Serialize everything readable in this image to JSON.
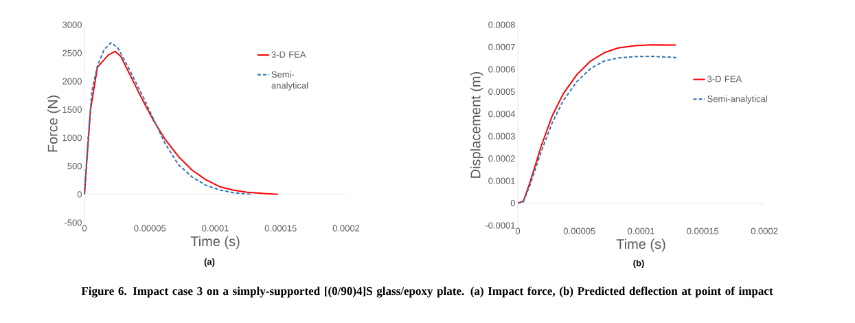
{
  "chart_data": [
    {
      "type": "line",
      "xlabel": "Time (s)",
      "ylabel": "Force (N)",
      "legend": "top right",
      "xlim": [
        0,
        0.0002
      ],
      "ylim": [
        -500,
        3000
      ],
      "xticks": [
        {
          "value": 0,
          "label": "0"
        },
        {
          "value": 5e-05,
          "label": "0.00005"
        },
        {
          "value": 0.0001,
          "label": "0.0001"
        },
        {
          "value": 0.00015,
          "label": "0.00015"
        },
        {
          "value": 0.0002,
          "label": "0.0002"
        }
      ],
      "yticks": [
        -500,
        0,
        500,
        1000,
        1500,
        2000,
        2500,
        3000
      ],
      "series": [
        {
          "name": "3-D FEA",
          "color": "#ff0000",
          "line_style": "solid",
          "x": [
            0,
            4.6e-06,
            9.9e-06,
            1.83e-05,
            2.35e-05,
            2.77e-05,
            3.61e-05,
            4.45e-05,
            5.29e-05,
            6.13e-05,
            7.18e-05,
            8.24e-05,
            9.29e-05,
            0.0001034,
            0.000114,
            0.0001244,
            0.000137,
            0.0001479
          ],
          "values": [
            0,
            1495,
            2248,
            2466,
            2530,
            2442,
            2053,
            1665,
            1301,
            985,
            670,
            427,
            257,
            136,
            73,
            39,
            15,
            0
          ]
        },
        {
          "name": "Semi-analytical",
          "color": "#2e75b6",
          "line_style": "dashed",
          "x": [
            0,
            2.5e-06,
            5.7e-06,
            9.9e-06,
            1.51e-05,
            2.04e-05,
            2.56e-05,
            3.4e-05,
            4.45e-05,
            5.29e-05,
            6.13e-05,
            7.18e-05,
            8.24e-05,
            9.29e-05,
            0.0001034,
            0.000114,
            0.0001286
          ],
          "values": [
            0,
            913,
            1835,
            2272,
            2563,
            2684,
            2587,
            2223,
            1738,
            1325,
            913,
            524,
            306,
            160,
            78,
            29,
            0
          ]
        }
      ],
      "annotations": [
        "(a)",
        "Figure 6. Impact case 3 on a simply-supported [(0/90)4]S  glass/epoxy plate. (a) Impact force, (b) Predicted deflection at point of impact"
      ]
    },
    {
      "type": "line",
      "xlabel": "Time (s)",
      "ylabel": "Displacement (m)",
      "legend": "right",
      "xlim": [
        0,
        0.0002
      ],
      "ylim": [
        -0.0001,
        0.0008
      ],
      "xticks": [
        {
          "value": 0,
          "label": "0"
        },
        {
          "value": 5e-05,
          "label": "0.00005"
        },
        {
          "value": 0.0001,
          "label": "0.0001"
        },
        {
          "value": 0.00015,
          "label": "0.00015"
        },
        {
          "value": 0.0002,
          "label": "0.0002"
        }
      ],
      "yticks": [
        {
          "value": -0.0001,
          "label": "-0.0001"
        },
        {
          "value": 0,
          "label": "0"
        },
        {
          "value": 0.0001,
          "label": "0.0001"
        },
        {
          "value": 0.0002,
          "label": "0.0002"
        },
        {
          "value": 0.0003,
          "label": "0.0003"
        },
        {
          "value": 0.0004,
          "label": "0.0004"
        },
        {
          "value": 0.0005,
          "label": "0.0005"
        },
        {
          "value": 0.0006,
          "label": "0.0006"
        },
        {
          "value": 0.0007,
          "label": "0.0007"
        },
        {
          "value": 0.0008,
          "label": "0.0008"
        }
      ],
      "series": [
        {
          "name": "3-D FEA",
          "color": "#ff0000",
          "line_style": "solid",
          "x": [
            0,
            4.5e-06,
            1e-05,
            1.9e-05,
            2.79e-05,
            3.68e-05,
            4.8e-05,
            5.92e-05,
            7.03e-05,
            8.15e-05,
            9.49e-05,
            0.0001083,
            0.0001283
          ],
          "values": [
            0,
            8.6e-06,
            9.5e-05,
            0.000256,
            0.000391,
            0.00049,
            0.000577,
            0.000638,
            0.000675,
            0.000696,
            0.000706,
            0.00071,
            0.000709
          ]
        },
        {
          "name": "Semi-analytical",
          "color": "#2e75b6",
          "line_style": "dashed",
          "x": [
            0,
            4.5e-06,
            1e-05,
            1.9e-05,
            2.79e-05,
            3.68e-05,
            4.8e-05,
            5.92e-05,
            7.03e-05,
            8.15e-05,
            9.49e-05,
            0.0001083,
            0.0001295
          ],
          "values": [
            0,
            5e-06,
            8.3e-05,
            0.000231,
            0.00036,
            0.000459,
            0.000546,
            0.000604,
            0.000638,
            0.000651,
            0.000657,
            0.000658,
            0.000653
          ]
        }
      ],
      "annotations": [
        "(b)"
      ]
    }
  ]
}
